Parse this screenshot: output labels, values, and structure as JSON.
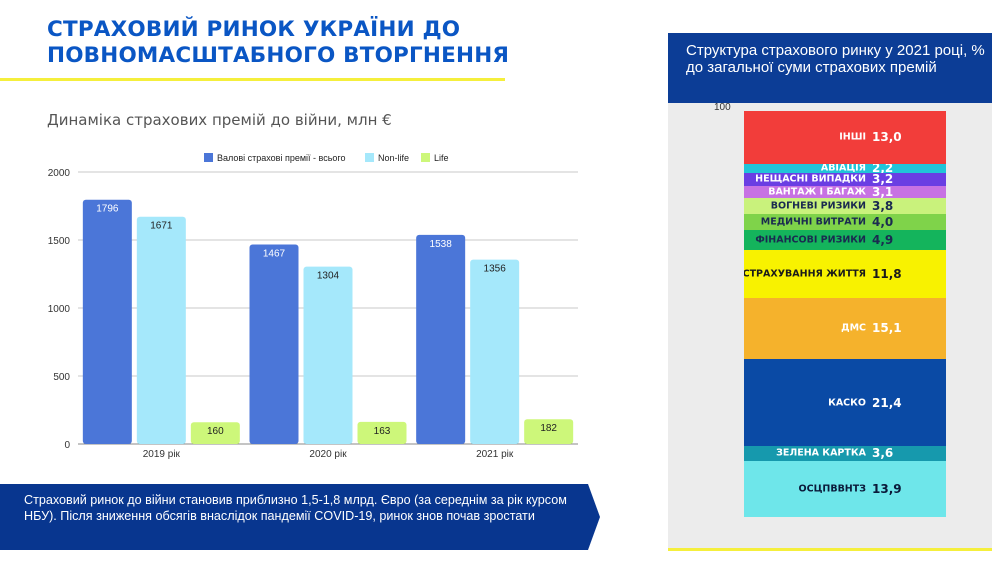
{
  "page": {
    "title": "СТРАХОВИЙ РИНОК УКРАЇНИ ДО ПОВНОМАСШТАБНОГО ВТОРГНЕННЯ",
    "note": "Страховий ринок до війни становив приблизно 1,5-1,8 млрд. Євро (за середнім за рік курсом НБУ). Після зниження обсягів внаслідок пандемії COVID-19, ринок знов почав зростати"
  },
  "colors": {
    "brand": "#0a56c4",
    "accent": "#f5ef3c",
    "dark_blue": "#08368f"
  },
  "chart_data": [
    {
      "type": "bar",
      "title": "Динаміка страхових премій до війни, млн €",
      "categories": [
        "2019 рік",
        "2020 рік",
        "2021 рік"
      ],
      "series": [
        {
          "name": "Валові страхові премії - всього",
          "values": [
            1796,
            1467,
            1538
          ],
          "color": "#4b76d8"
        },
        {
          "name": "Non-life",
          "values": [
            1671,
            1304,
            1356
          ],
          "color": "#a5e8fb"
        },
        {
          "name": "Life",
          "values": [
            160,
            163,
            182
          ],
          "color": "#cdf77a"
        }
      ],
      "ylim": [
        0,
        2000
      ],
      "yticks": [
        "0",
        "500",
        "1000",
        "1500",
        "2000"
      ],
      "xlabel": "",
      "ylabel": "",
      "grid": true,
      "legend": "top"
    },
    {
      "type": "bar",
      "stacked": true,
      "title": "Структура страхового ринку у 2021 році, % до загальної суми страхових премій",
      "axis_top_label": "100",
      "segments": [
        {
          "label": "ІНШІ",
          "value": 13.0,
          "value_text": "13,0",
          "color": "#f23d3a",
          "text_color": "#ffffff"
        },
        {
          "label": "АВІАЦІЯ",
          "value": 2.2,
          "value_text": "2,2",
          "color": "#21c4d8",
          "text_color": "#ffffff"
        },
        {
          "label": "НЕЩАСНІ ВИПАДКИ",
          "value": 3.2,
          "value_text": "3,2",
          "color": "#6a3ee3",
          "text_color": "#ffffff"
        },
        {
          "label": "ВАНТАЖ І БАГАЖ",
          "value": 3.1,
          "value_text": "3,1",
          "color": "#c772e3",
          "text_color": "#ffffff"
        },
        {
          "label": "ВОГНЕВІ РИЗИКИ",
          "value": 3.8,
          "value_text": "3,8",
          "color": "#c9f27c",
          "text_color": "#1a2a50"
        },
        {
          "label": "МЕДИЧНІ ВИТРАТИ",
          "value": 4.0,
          "value_text": "4,0",
          "color": "#7fd34a",
          "text_color": "#1a2a50"
        },
        {
          "label": "ФІНАНСОВІ РИЗИКИ",
          "value": 4.9,
          "value_text": "4,9",
          "color": "#14b45c",
          "text_color": "#1a2a50"
        },
        {
          "label": "СТРАХУВАННЯ ЖИТТЯ",
          "value": 11.8,
          "value_text": "11,8",
          "color": "#f8f200",
          "text_color": "#1a1a1a"
        },
        {
          "label": "ДМС",
          "value": 15.1,
          "value_text": "15,1",
          "color": "#f5b22c",
          "text_color": "#ffffff"
        },
        {
          "label": "КАСКО",
          "value": 21.4,
          "value_text": "21,4",
          "color": "#0a4aa5",
          "text_color": "#ffffff"
        },
        {
          "label": "ЗЕЛЕНА КАРТКА",
          "value": 3.6,
          "value_text": "3,6",
          "color": "#1699ad",
          "text_color": "#ffffff"
        },
        {
          "label": "ОСЦПВВНТЗ",
          "value": 13.9,
          "value_text": "13,9",
          "color": "#6ee6ea",
          "text_color": "#0a1a3a"
        }
      ]
    }
  ]
}
